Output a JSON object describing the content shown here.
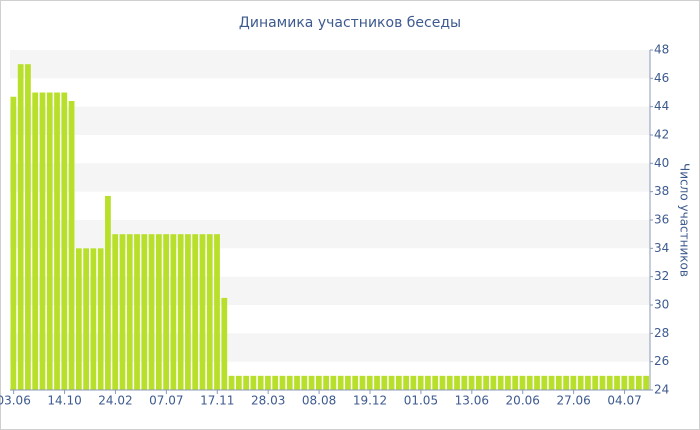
{
  "chart_data": {
    "type": "bar",
    "title": "Динамика участников беседы",
    "y_label": "Число участников",
    "categories": [
      "03.06",
      null,
      null,
      null,
      null,
      null,
      null,
      "14.10",
      null,
      null,
      null,
      null,
      null,
      null,
      "24.02",
      null,
      null,
      null,
      null,
      null,
      null,
      "07.07",
      null,
      null,
      null,
      null,
      null,
      null,
      "17.11",
      null,
      null,
      null,
      null,
      null,
      null,
      "28.03",
      null,
      null,
      null,
      null,
      null,
      null,
      "08.08",
      null,
      null,
      null,
      null,
      null,
      null,
      "19.12",
      null,
      null,
      null,
      null,
      null,
      null,
      "01.05",
      null,
      null,
      null,
      null,
      null,
      null,
      "13.06",
      null,
      null,
      null,
      null,
      null,
      null,
      "20.06",
      null,
      null,
      null,
      null,
      null,
      null,
      "27.06",
      null,
      null,
      null,
      null,
      null,
      null,
      "04.07",
      null,
      null,
      null
    ],
    "values": [
      44.7,
      47,
      47,
      45,
      45,
      45,
      45,
      45,
      44.4,
      34,
      34,
      34,
      34,
      37.7,
      35,
      35,
      35,
      35,
      35,
      35,
      35,
      35,
      35,
      35,
      35,
      35,
      35,
      35,
      35,
      30.5,
      25,
      25,
      25,
      25,
      25,
      25,
      25,
      25,
      25,
      25,
      25,
      25,
      25,
      25,
      25,
      25,
      25,
      25,
      25,
      25,
      25,
      25,
      25,
      25,
      25,
      25,
      25,
      25,
      25,
      25,
      25,
      25,
      25,
      25,
      25,
      25,
      25,
      25,
      25,
      25,
      25,
      25,
      25,
      25,
      25,
      25,
      25,
      25,
      25,
      25,
      25,
      25,
      25,
      25,
      25,
      25,
      25,
      25
    ],
    "color": "#b8e02b",
    "ylim": [
      24,
      48
    ],
    "yticks": [
      24,
      26,
      28,
      30,
      32,
      34,
      36,
      38,
      40,
      42,
      44,
      46,
      48
    ],
    "y_axis_side": "right",
    "grid_bands": true
  }
}
